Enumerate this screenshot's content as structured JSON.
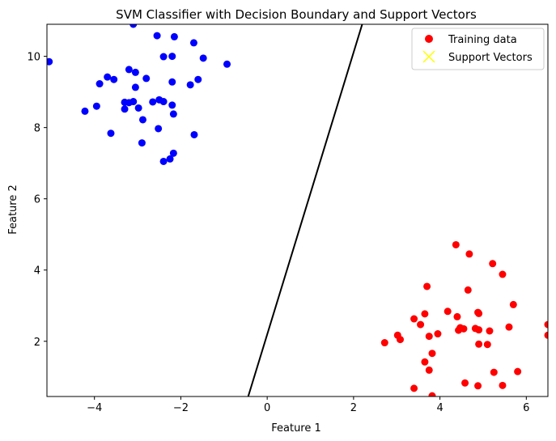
{
  "chart_data": {
    "type": "scatter",
    "title": "SVM Classifier with Decision Boundary and Support Vectors",
    "xlabel": "Feature 1",
    "ylabel": "Feature 2",
    "xlim": [
      -5.1,
      6.5
    ],
    "ylim": [
      0.45,
      10.9
    ],
    "xticks": [
      -4,
      -2,
      0,
      2,
      4,
      6
    ],
    "yticks": [
      2,
      4,
      6,
      8,
      10
    ],
    "grid": false,
    "legend": {
      "position": "upper-right",
      "entries": [
        {
          "label": "Training data",
          "marker": "circle",
          "color": "#ff0000"
        },
        {
          "label": "Support Vectors",
          "marker": "x",
          "color": "#ffff00"
        }
      ]
    },
    "decision_boundary": {
      "x": [
        -0.44,
        2.2
      ],
      "y": [
        0.45,
        10.9
      ],
      "color": "#000000"
    },
    "series": [
      {
        "class": 0,
        "color": "#0000ff",
        "points": [
          [
            -3.1,
            10.9
          ],
          [
            -2.55,
            10.58
          ],
          [
            -2.15,
            10.55
          ],
          [
            -1.7,
            10.38
          ],
          [
            -5.05,
            9.85
          ],
          [
            -2.4,
            9.99
          ],
          [
            -2.2,
            10.0
          ],
          [
            -1.48,
            9.95
          ],
          [
            -0.93,
            9.78
          ],
          [
            -3.2,
            9.63
          ],
          [
            -3.05,
            9.55
          ],
          [
            -3.7,
            9.42
          ],
          [
            -3.55,
            9.35
          ],
          [
            -3.88,
            9.23
          ],
          [
            -2.8,
            9.38
          ],
          [
            -2.2,
            9.28
          ],
          [
            -1.78,
            9.2
          ],
          [
            -1.6,
            9.35
          ],
          [
            -3.05,
            9.13
          ],
          [
            -3.3,
            8.71
          ],
          [
            -3.2,
            8.7
          ],
          [
            -3.1,
            8.73
          ],
          [
            -2.65,
            8.72
          ],
          [
            -2.5,
            8.78
          ],
          [
            -2.4,
            8.73
          ],
          [
            -3.95,
            8.6
          ],
          [
            -3.3,
            8.52
          ],
          [
            -2.98,
            8.55
          ],
          [
            -2.2,
            8.63
          ],
          [
            -4.22,
            8.46
          ],
          [
            -2.17,
            8.38
          ],
          [
            -2.88,
            8.22
          ],
          [
            -2.52,
            7.97
          ],
          [
            -3.62,
            7.84
          ],
          [
            -1.69,
            7.8
          ],
          [
            -2.9,
            7.57
          ],
          [
            -2.17,
            7.28
          ],
          [
            -2.25,
            7.12
          ],
          [
            -2.4,
            7.05
          ]
        ]
      },
      {
        "class": 1,
        "color": "#ff0000",
        "points": [
          [
            4.37,
            4.71
          ],
          [
            4.68,
            4.45
          ],
          [
            5.22,
            4.18
          ],
          [
            5.45,
            3.88
          ],
          [
            3.7,
            3.54
          ],
          [
            4.65,
            3.44
          ],
          [
            5.7,
            3.03
          ],
          [
            4.18,
            2.84
          ],
          [
            3.65,
            2.77
          ],
          [
            4.88,
            2.81
          ],
          [
            4.9,
            2.78
          ],
          [
            4.4,
            2.69
          ],
          [
            3.4,
            2.63
          ],
          [
            3.55,
            2.47
          ],
          [
            4.47,
            2.38
          ],
          [
            4.55,
            2.35
          ],
          [
            4.82,
            2.36
          ],
          [
            4.43,
            2.31
          ],
          [
            5.15,
            2.29
          ],
          [
            4.9,
            2.32
          ],
          [
            5.6,
            2.4
          ],
          [
            6.5,
            2.47
          ],
          [
            3.95,
            2.21
          ],
          [
            3.02,
            2.17
          ],
          [
            3.75,
            2.14
          ],
          [
            6.5,
            2.17
          ],
          [
            3.08,
            2.05
          ],
          [
            2.72,
            1.96
          ],
          [
            4.9,
            1.92
          ],
          [
            5.1,
            1.91
          ],
          [
            3.82,
            1.66
          ],
          [
            3.65,
            1.42
          ],
          [
            3.75,
            1.19
          ],
          [
            5.25,
            1.13
          ],
          [
            5.8,
            1.15
          ],
          [
            4.58,
            0.83
          ],
          [
            4.88,
            0.75
          ],
          [
            5.45,
            0.76
          ],
          [
            3.4,
            0.68
          ],
          [
            3.82,
            0.47
          ]
        ]
      }
    ]
  }
}
